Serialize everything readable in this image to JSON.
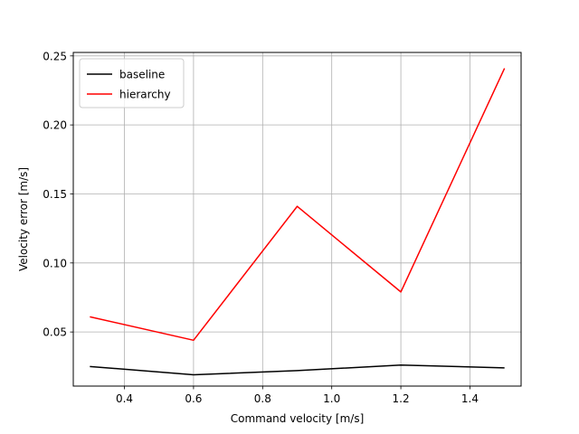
{
  "chart_data": {
    "type": "line",
    "xlabel": "Command velocity [m/s]",
    "ylabel": "Velocity error [m/s]",
    "xlim": [
      0.252,
      1.548
    ],
    "ylim": [
      0.0108,
      0.2525
    ],
    "xticks": [
      "0.4",
      "0.6",
      "0.8",
      "1.0",
      "1.2",
      "1.4"
    ],
    "xtick_values": [
      0.4,
      0.6,
      0.8,
      1.0,
      1.2,
      1.4
    ],
    "yticks": [
      "0.05",
      "0.10",
      "0.15",
      "0.20",
      "0.25"
    ],
    "ytick_values": [
      0.05,
      0.1,
      0.15,
      0.2,
      0.25
    ],
    "grid": true,
    "legend_position": "top-left",
    "x": [
      0.3,
      0.6,
      0.9,
      1.2,
      1.5
    ],
    "series": [
      {
        "name": "baseline",
        "color": "#000000",
        "values": [
          0.025,
          0.019,
          0.022,
          0.026,
          0.024
        ]
      },
      {
        "name": "hierarchy",
        "color": "#ff0000",
        "values": [
          0.061,
          0.044,
          0.141,
          0.079,
          0.241
        ]
      }
    ]
  }
}
